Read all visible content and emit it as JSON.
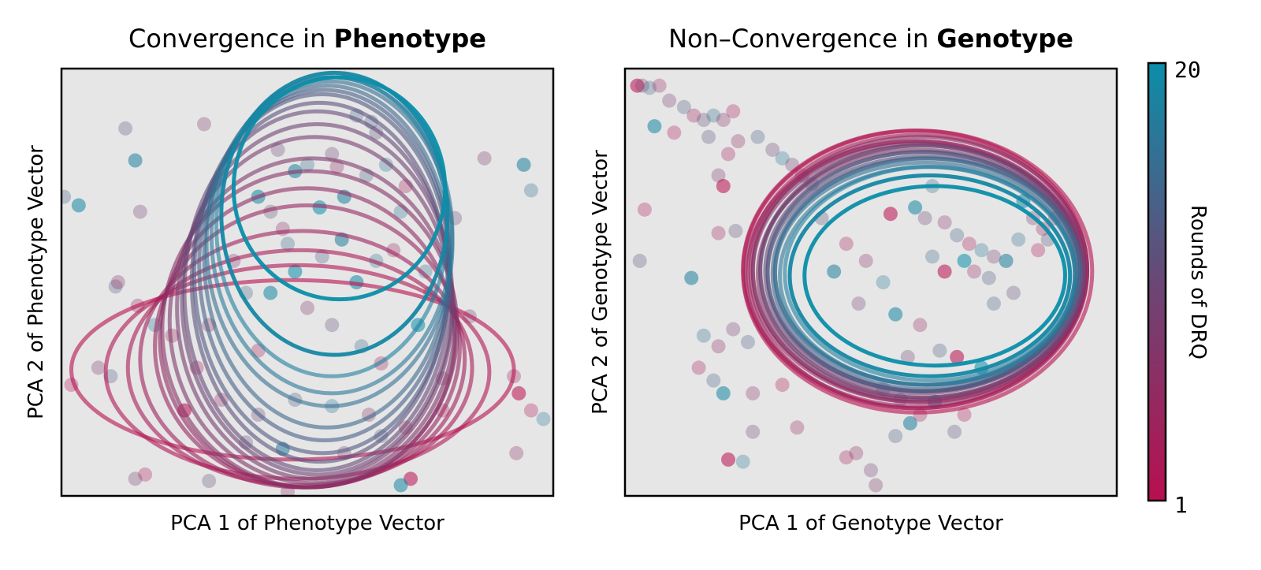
{
  "chart_data": [
    {
      "type": "scatter",
      "title_prefix": "Convergence in ",
      "title_bold": "Phenotype",
      "xlabel": "PCA 1 of Phenotype Vector",
      "ylabel": "PCA 2 of Phenotype Vector",
      "xlim": [
        -1,
        1
      ],
      "ylim": [
        -1,
        1
      ],
      "grid": false,
      "background": "#e6e6e6",
      "ellipses": [
        {
          "round": 1,
          "cx": -0.06,
          "cy": -0.41,
          "rx": 0.9,
          "ry": 0.42
        },
        {
          "round": 2,
          "cx": -0.04,
          "cy": -0.42,
          "rx": 0.78,
          "ry": 0.5
        },
        {
          "round": 3,
          "cx": -0.03,
          "cy": -0.4,
          "rx": 0.7,
          "ry": 0.55
        },
        {
          "round": 4,
          "cx": -0.02,
          "cy": -0.36,
          "rx": 0.66,
          "ry": 0.6
        },
        {
          "round": 5,
          "cx": 0.0,
          "cy": -0.3,
          "rx": 0.62,
          "ry": 0.66
        },
        {
          "round": 6,
          "cx": 0.0,
          "cy": -0.26,
          "rx": 0.6,
          "ry": 0.7
        },
        {
          "round": 7,
          "cx": 0.01,
          "cy": -0.22,
          "rx": 0.6,
          "ry": 0.74
        },
        {
          "round": 8,
          "cx": 0.02,
          "cy": -0.18,
          "rx": 0.58,
          "ry": 0.76
        },
        {
          "round": 9,
          "cx": 0.03,
          "cy": -0.12,
          "rx": 0.56,
          "ry": 0.8
        },
        {
          "round": 10,
          "cx": 0.04,
          "cy": -0.08,
          "rx": 0.55,
          "ry": 0.82
        },
        {
          "round": 11,
          "cx": 0.04,
          "cy": -0.04,
          "rx": 0.54,
          "ry": 0.84
        },
        {
          "round": 12,
          "cx": 0.05,
          "cy": 0.0,
          "rx": 0.52,
          "ry": 0.84
        },
        {
          "round": 13,
          "cx": 0.06,
          "cy": 0.04,
          "rx": 0.52,
          "ry": 0.84
        },
        {
          "round": 14,
          "cx": 0.07,
          "cy": 0.08,
          "rx": 0.51,
          "ry": 0.82
        },
        {
          "round": 15,
          "cx": 0.08,
          "cy": 0.12,
          "rx": 0.5,
          "ry": 0.8
        },
        {
          "round": 16,
          "cx": 0.09,
          "cy": 0.18,
          "rx": 0.5,
          "ry": 0.76
        },
        {
          "round": 17,
          "cx": 0.1,
          "cy": 0.22,
          "rx": 0.49,
          "ry": 0.74
        },
        {
          "round": 18,
          "cx": 0.1,
          "cy": 0.26,
          "rx": 0.47,
          "ry": 0.7
        },
        {
          "round": 19,
          "cx": 0.11,
          "cy": 0.32,
          "rx": 0.46,
          "ry": 0.66
        },
        {
          "round": 20,
          "cx": 0.13,
          "cy": 0.44,
          "rx": 0.43,
          "ry": 0.52
        }
      ],
      "points": [
        [
          -0.74,
          0.72,
          12
        ],
        [
          -0.42,
          0.74,
          8
        ],
        [
          -0.7,
          0.57,
          18
        ],
        [
          -0.68,
          0.33,
          9
        ],
        [
          -0.99,
          0.4,
          14
        ],
        [
          -0.93,
          0.36,
          19
        ],
        [
          -0.78,
          -0.02,
          13
        ],
        [
          -0.77,
          0.0,
          6
        ],
        [
          -0.69,
          -0.11,
          4
        ],
        [
          -0.62,
          -0.2,
          17
        ],
        [
          -0.96,
          -0.48,
          2
        ],
        [
          -0.85,
          -0.4,
          8
        ],
        [
          -0.8,
          -0.44,
          13
        ],
        [
          -0.7,
          -0.92,
          9
        ],
        [
          -0.66,
          -0.9,
          3
        ],
        [
          -0.4,
          -0.93,
          11
        ],
        [
          -0.08,
          -0.98,
          7
        ],
        [
          0.42,
          -0.92,
          1
        ],
        [
          0.38,
          -0.95,
          19
        ],
        [
          0.88,
          0.55,
          18
        ],
        [
          0.91,
          0.43,
          16
        ],
        [
          0.72,
          0.58,
          8
        ],
        [
          0.66,
          -0.16,
          9
        ],
        [
          0.84,
          -0.44,
          4
        ],
        [
          0.86,
          -0.52,
          1
        ],
        [
          0.91,
          -0.6,
          2
        ],
        [
          0.96,
          -0.64,
          17
        ],
        [
          0.85,
          -0.8,
          7
        ],
        [
          0.2,
          0.78,
          15
        ],
        [
          0.26,
          0.75,
          14
        ],
        [
          0.28,
          0.7,
          12
        ],
        [
          -0.05,
          0.52,
          18
        ],
        [
          0.0,
          0.55,
          16
        ],
        [
          0.1,
          0.6,
          10
        ],
        [
          0.12,
          0.54,
          6
        ],
        [
          0.24,
          0.5,
          14
        ],
        [
          0.4,
          0.45,
          3
        ],
        [
          0.38,
          0.33,
          17
        ],
        [
          -0.2,
          0.4,
          19
        ],
        [
          -0.15,
          0.33,
          11
        ],
        [
          -0.1,
          0.25,
          7
        ],
        [
          -0.08,
          0.18,
          15
        ],
        [
          0.06,
          0.12,
          13
        ],
        [
          0.14,
          0.2,
          18
        ],
        [
          0.28,
          0.1,
          17
        ],
        [
          0.35,
          0.15,
          5
        ],
        [
          0.48,
          0.05,
          16
        ],
        [
          0.5,
          -0.05,
          12
        ],
        [
          -0.3,
          0.1,
          9
        ],
        [
          -0.25,
          -0.05,
          14
        ],
        [
          -0.15,
          -0.05,
          19
        ],
        [
          0.0,
          -0.12,
          8
        ],
        [
          0.1,
          -0.2,
          11
        ],
        [
          0.22,
          -0.3,
          15
        ],
        [
          0.3,
          -0.38,
          4
        ],
        [
          -0.2,
          -0.32,
          3
        ],
        [
          -0.4,
          -0.2,
          6
        ],
        [
          -0.45,
          -0.4,
          2
        ],
        [
          -0.35,
          -0.55,
          5
        ],
        [
          -0.2,
          -0.62,
          10
        ],
        [
          -0.05,
          -0.55,
          13
        ],
        [
          0.1,
          -0.58,
          17
        ],
        [
          0.25,
          -0.62,
          7
        ],
        [
          0.4,
          -0.68,
          3
        ],
        [
          -0.25,
          -0.75,
          12
        ],
        [
          -0.1,
          -0.78,
          18
        ],
        [
          0.15,
          -0.8,
          9
        ],
        [
          0.3,
          -0.72,
          14
        ],
        [
          -0.5,
          -0.6,
          1
        ],
        [
          0.55,
          -0.45,
          6
        ],
        [
          0.45,
          -0.2,
          20
        ],
        [
          0.2,
          0.0,
          19
        ],
        [
          -0.05,
          0.05,
          20
        ],
        [
          0.05,
          0.35,
          20
        ],
        [
          0.15,
          0.4,
          18
        ],
        [
          0.32,
          0.55,
          17
        ],
        [
          -0.12,
          0.62,
          10
        ],
        [
          0.6,
          0.3,
          11
        ],
        [
          0.55,
          -0.6,
          2
        ],
        [
          -0.55,
          -0.25,
          4
        ]
      ]
    },
    {
      "type": "scatter",
      "title_prefix": "Non–Convergence in ",
      "title_bold": "Genotype",
      "xlabel": "PCA 1 of Genotype Vector",
      "ylabel": "PCA 2 of Genotype Vector",
      "xlim": [
        -1,
        1
      ],
      "ylim": [
        -1,
        1
      ],
      "grid": false,
      "background": "#e6e6e6",
      "ellipses": [
        {
          "round": 1,
          "cx": 0.19,
          "cy": 0.05,
          "rx": 0.71,
          "ry": 0.66
        },
        {
          "round": 2,
          "cx": 0.18,
          "cy": 0.06,
          "rx": 0.7,
          "ry": 0.65
        },
        {
          "round": 3,
          "cx": 0.19,
          "cy": 0.05,
          "rx": 0.69,
          "ry": 0.64
        },
        {
          "round": 4,
          "cx": 0.18,
          "cy": 0.04,
          "rx": 0.69,
          "ry": 0.62
        },
        {
          "round": 5,
          "cx": 0.19,
          "cy": 0.05,
          "rx": 0.68,
          "ry": 0.61
        },
        {
          "round": 6,
          "cx": 0.2,
          "cy": 0.06,
          "rx": 0.68,
          "ry": 0.62
        },
        {
          "round": 7,
          "cx": 0.19,
          "cy": 0.05,
          "rx": 0.67,
          "ry": 0.6
        },
        {
          "round": 8,
          "cx": 0.2,
          "cy": 0.04,
          "rx": 0.66,
          "ry": 0.58
        },
        {
          "round": 9,
          "cx": 0.21,
          "cy": 0.05,
          "rx": 0.66,
          "ry": 0.59
        },
        {
          "round": 10,
          "cx": 0.2,
          "cy": 0.06,
          "rx": 0.65,
          "ry": 0.58
        },
        {
          "round": 11,
          "cx": 0.21,
          "cy": 0.05,
          "rx": 0.64,
          "ry": 0.56
        },
        {
          "round": 12,
          "cx": 0.22,
          "cy": 0.04,
          "rx": 0.64,
          "ry": 0.55
        },
        {
          "round": 13,
          "cx": 0.21,
          "cy": 0.05,
          "rx": 0.63,
          "ry": 0.56
        },
        {
          "round": 14,
          "cx": 0.22,
          "cy": 0.04,
          "rx": 0.62,
          "ry": 0.54
        },
        {
          "round": 15,
          "cx": 0.23,
          "cy": 0.05,
          "rx": 0.62,
          "ry": 0.53
        },
        {
          "round": 16,
          "cx": 0.22,
          "cy": 0.04,
          "rx": 0.61,
          "ry": 0.52
        },
        {
          "round": 17,
          "cx": 0.23,
          "cy": 0.03,
          "rx": 0.6,
          "ry": 0.51
        },
        {
          "round": 18,
          "cx": 0.24,
          "cy": 0.04,
          "rx": 0.59,
          "ry": 0.5
        },
        {
          "round": 19,
          "cx": 0.24,
          "cy": 0.03,
          "rx": 0.57,
          "ry": 0.47
        },
        {
          "round": 20,
          "cx": 0.26,
          "cy": 0.03,
          "rx": 0.53,
          "ry": 0.42
        }
      ],
      "points": [
        [
          -0.95,
          0.92,
          1
        ],
        [
          -0.93,
          0.92,
          8
        ],
        [
          -0.9,
          0.91,
          15
        ],
        [
          -0.86,
          0.92,
          5
        ],
        [
          -0.82,
          0.85,
          9
        ],
        [
          -0.76,
          0.82,
          13
        ],
        [
          -0.72,
          0.78,
          4
        ],
        [
          -0.68,
          0.76,
          11
        ],
        [
          -0.64,
          0.78,
          16
        ],
        [
          -0.6,
          0.76,
          7
        ],
        [
          -0.56,
          0.8,
          3
        ],
        [
          -0.88,
          0.73,
          19
        ],
        [
          -0.8,
          0.7,
          2
        ],
        [
          -0.66,
          0.68,
          12
        ],
        [
          -0.54,
          0.66,
          6
        ],
        [
          -0.46,
          0.68,
          14
        ],
        [
          -0.4,
          0.62,
          10
        ],
        [
          -0.36,
          0.58,
          17
        ],
        [
          -0.32,
          0.55,
          9
        ],
        [
          -0.28,
          0.5,
          5
        ],
        [
          -0.24,
          0.46,
          13
        ],
        [
          -0.58,
          0.6,
          3
        ],
        [
          -0.62,
          0.5,
          8
        ],
        [
          -0.6,
          0.45,
          1
        ],
        [
          -0.92,
          0.34,
          2
        ],
        [
          -0.94,
          0.1,
          12
        ],
        [
          -0.73,
          0.02,
          18
        ],
        [
          -0.62,
          0.23,
          4
        ],
        [
          -0.55,
          0.24,
          11
        ],
        [
          -0.68,
          -0.25,
          16
        ],
        [
          -0.62,
          -0.3,
          6
        ],
        [
          -0.56,
          -0.22,
          9
        ],
        [
          -0.5,
          -0.28,
          13
        ],
        [
          -0.7,
          -0.4,
          3
        ],
        [
          -0.64,
          -0.46,
          14
        ],
        [
          -0.6,
          -0.52,
          19
        ],
        [
          -0.48,
          -0.52,
          7
        ],
        [
          -0.36,
          -0.48,
          2
        ],
        [
          -0.3,
          -0.68,
          5
        ],
        [
          -0.48,
          -0.7,
          10
        ],
        [
          -0.58,
          -0.83,
          1
        ],
        [
          -0.52,
          -0.84,
          17
        ],
        [
          -0.06,
          -0.8,
          6
        ],
        [
          -0.1,
          -0.82,
          3
        ],
        [
          0.0,
          -0.88,
          9
        ],
        [
          0.02,
          -0.95,
          8
        ],
        [
          0.1,
          -0.72,
          13
        ],
        [
          0.16,
          -0.66,
          18
        ],
        [
          0.2,
          -0.62,
          4
        ],
        [
          0.12,
          -0.55,
          11
        ],
        [
          0.05,
          -0.5,
          15
        ],
        [
          0.26,
          -0.56,
          20
        ],
        [
          0.34,
          -0.7,
          12
        ],
        [
          0.38,
          -0.62,
          2
        ],
        [
          0.25,
          0.45,
          16
        ],
        [
          0.18,
          0.35,
          19
        ],
        [
          0.08,
          0.32,
          1
        ],
        [
          0.22,
          0.3,
          10
        ],
        [
          0.3,
          0.28,
          7
        ],
        [
          0.35,
          0.22,
          14
        ],
        [
          0.4,
          0.18,
          3
        ],
        [
          0.45,
          0.15,
          17
        ],
        [
          0.5,
          0.12,
          9
        ],
        [
          0.38,
          0.1,
          20
        ],
        [
          0.42,
          0.05,
          5
        ],
        [
          0.48,
          0.02,
          13
        ],
        [
          0.55,
          0.1,
          18
        ],
        [
          0.3,
          0.05,
          1
        ],
        [
          0.25,
          0.12,
          15
        ],
        [
          0.62,
          0.38,
          19
        ],
        [
          0.66,
          0.3,
          8
        ],
        [
          0.7,
          0.25,
          4
        ],
        [
          0.72,
          0.2,
          12
        ],
        [
          0.68,
          0.15,
          2
        ],
        [
          0.6,
          0.2,
          16
        ],
        [
          0.75,
          0.3,
          6
        ],
        [
          0.58,
          -0.05,
          11
        ],
        [
          0.5,
          -0.1,
          14
        ],
        [
          -0.1,
          0.18,
          3
        ],
        [
          -0.02,
          0.1,
          7
        ],
        [
          0.05,
          0.0,
          17
        ],
        [
          -0.05,
          -0.1,
          9
        ],
        [
          0.1,
          -0.15,
          19
        ],
        [
          0.2,
          -0.2,
          5
        ],
        [
          0.28,
          -0.32,
          13
        ],
        [
          0.35,
          -0.35,
          1
        ],
        [
          0.15,
          -0.35,
          10
        ],
        [
          -0.2,
          0.3,
          12
        ],
        [
          -0.15,
          0.05,
          18
        ],
        [
          0.45,
          -0.4,
          20
        ]
      ]
    }
  ],
  "colorbar": {
    "label": "Rounds of DRQ",
    "min": 1,
    "max": 20,
    "tick_min": "1",
    "tick_max": "20",
    "color_min": "#b80f4f",
    "color_mid": "#6a4775",
    "color_max": "#0b8ea9"
  }
}
